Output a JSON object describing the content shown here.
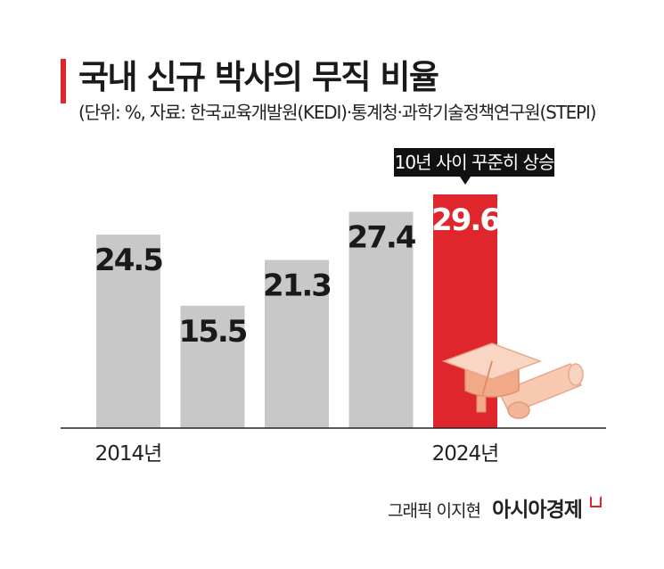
{
  "title": "국내 신규 박사의 무직 비율",
  "subtitle": "(단위: %, 자료: 한국교육개발원(KEDI)·통계청·과학기술정책연구원(STEPI)",
  "callout": "10년 사이 꾸준히 상승",
  "credit": {
    "author": "그래픽 이지현",
    "brand": "아시아경제"
  },
  "colors": {
    "bar": "#c8c8c8",
    "highlight": "#e0262d",
    "text": "#1a1a1a",
    "callout_bg": "#111111"
  },
  "icons": [
    "graduation-cap-icon",
    "diploma-scroll-icon",
    "brand-mark-icon"
  ],
  "chart_data": {
    "type": "bar",
    "categories": [
      "2014년",
      "",
      "",
      "",
      "2024년"
    ],
    "values": [
      24.5,
      15.5,
      21.3,
      27.4,
      29.6
    ],
    "labels": [
      "24.5",
      "15.5",
      "21.3",
      "27.4",
      "29.6"
    ],
    "highlight_index": 4,
    "ylim": [
      0,
      29.6
    ],
    "grid": false
  }
}
